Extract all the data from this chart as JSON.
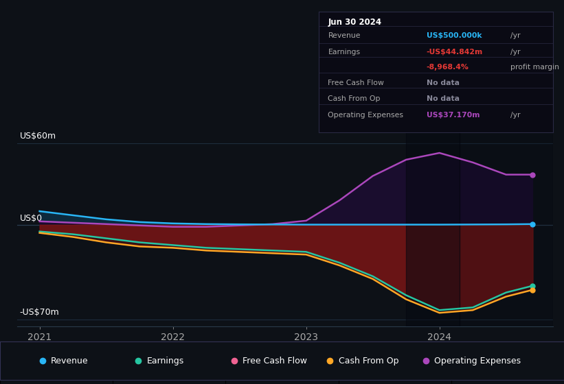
{
  "bg_color": "#0d1117",
  "plot_bg_color": "#0d1117",
  "ylim": [
    -75,
    78
  ],
  "xlim_start": 2020.83,
  "xlim_end": 2024.85,
  "xticks": [
    2021,
    2022,
    2023,
    2024
  ],
  "x": [
    2021.0,
    2021.25,
    2021.5,
    2021.75,
    2022.0,
    2022.25,
    2022.5,
    2022.75,
    2023.0,
    2023.25,
    2023.5,
    2023.75,
    2024.0,
    2024.25,
    2024.5,
    2024.7
  ],
  "revenue": [
    10,
    7,
    4,
    2,
    1,
    0.5,
    0.3,
    0.2,
    0.1,
    0.1,
    0.1,
    0.1,
    0.1,
    0.2,
    0.3,
    0.5
  ],
  "earnings": [
    -5,
    -7,
    -10,
    -13,
    -15,
    -17,
    -18,
    -19,
    -20,
    -28,
    -38,
    -52,
    -63,
    -61,
    -50,
    -45
  ],
  "cash_from_op": [
    -6,
    -9,
    -13,
    -16,
    -17,
    -19,
    -20,
    -21,
    -22,
    -30,
    -40,
    -55,
    -65,
    -63,
    -53,
    -48
  ],
  "op_expenses": [
    2.5,
    1.5,
    0.5,
    -0.5,
    -1.5,
    -1.5,
    -0.5,
    0.5,
    3,
    18,
    36,
    48,
    53,
    46,
    37,
    37
  ],
  "revenue_color": "#29b6f6",
  "earnings_color": "#26c6a2",
  "cash_from_op_color": "#ffa726",
  "op_expenses_color": "#ab47bc",
  "free_cash_flow_color": "#f06292",
  "fill_above_blue": "#0d2a3d",
  "fill_purple_above": "#1a0d2e",
  "fill_red_below": "#7a1515",
  "highlight_x_start": 2023.75,
  "highlight_x_end": 2024.15,
  "info_box": {
    "date": "Jun 30 2024",
    "rows": [
      {
        "label": "Revenue",
        "value": "US$500.000k",
        "value2": "/yr",
        "label_color": "#aaaaaa",
        "value_color": "#29b6f6",
        "value2_color": "#aaaaaa"
      },
      {
        "label": "Earnings",
        "value": "-US$44.842m",
        "value2": "/yr",
        "label_color": "#aaaaaa",
        "value_color": "#e53935",
        "value2_color": "#aaaaaa"
      },
      {
        "label": "",
        "value": "-8,968.4%",
        "value2": "profit margin",
        "label_color": "#aaaaaa",
        "value_color": "#e53935",
        "value2_color": "#aaaaaa"
      },
      {
        "label": "Free Cash Flow",
        "value": "No data",
        "value2": "",
        "label_color": "#aaaaaa",
        "value_color": "#888899",
        "value2_color": "#aaaaaa"
      },
      {
        "label": "Cash From Op",
        "value": "No data",
        "value2": "",
        "label_color": "#aaaaaa",
        "value_color": "#888899",
        "value2_color": "#aaaaaa"
      },
      {
        "label": "Operating Expenses",
        "value": "US$37.170m",
        "value2": "/yr",
        "label_color": "#aaaaaa",
        "value_color": "#ab47bc",
        "value2_color": "#aaaaaa"
      }
    ]
  },
  "legend": [
    {
      "label": "Revenue",
      "color": "#29b6f6"
    },
    {
      "label": "Earnings",
      "color": "#26c6a2"
    },
    {
      "label": "Free Cash Flow",
      "color": "#f06292"
    },
    {
      "label": "Cash From Op",
      "color": "#ffa726"
    },
    {
      "label": "Operating Expenses",
      "color": "#ab47bc"
    }
  ]
}
